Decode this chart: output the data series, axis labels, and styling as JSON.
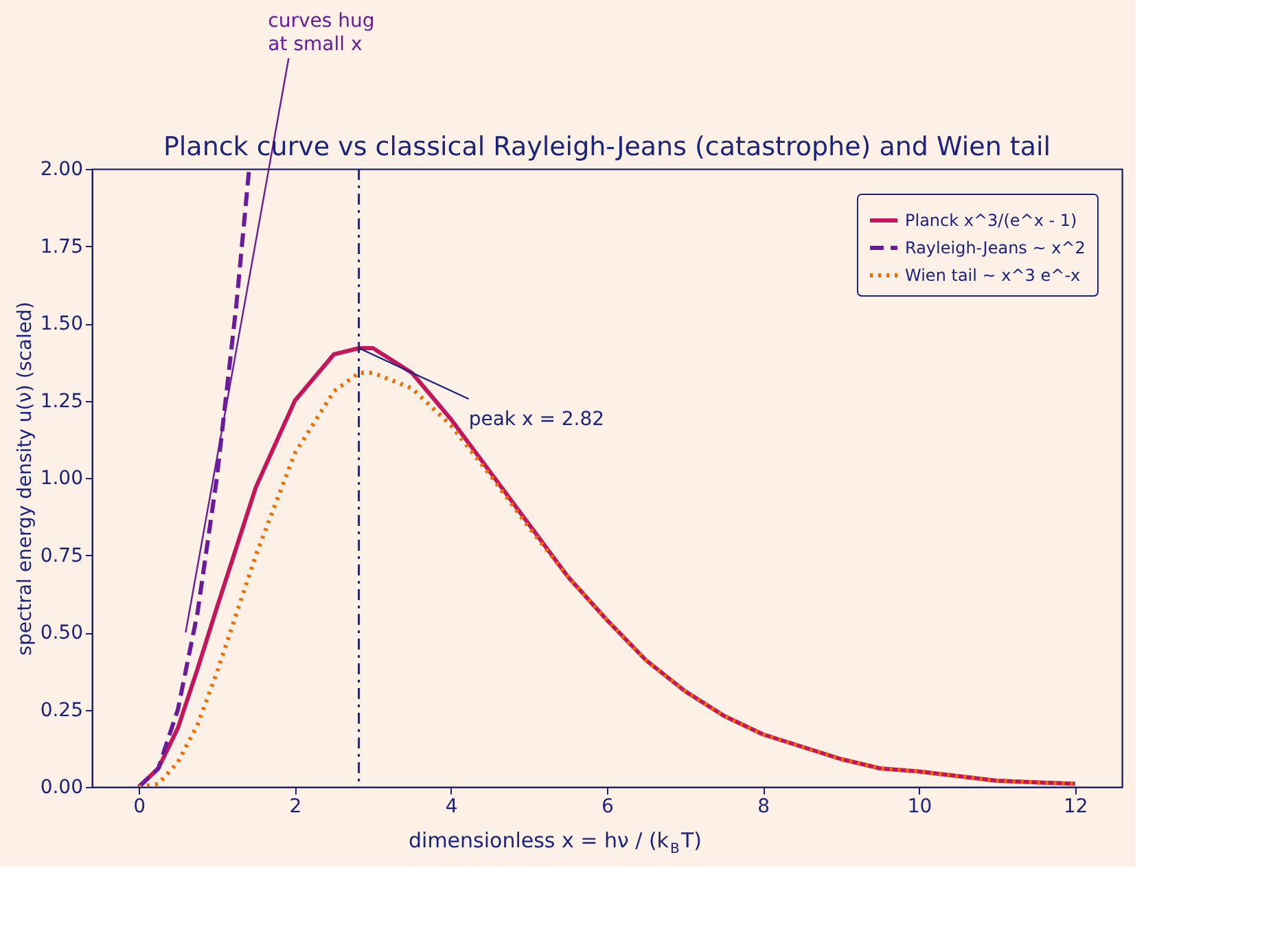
{
  "chart_data": {
    "type": "line",
    "title": "Planck curve vs classical Rayleigh-Jeans (catastrophe) and Wien tail",
    "xlabel": "dimensionless  x = hν / (k$_{B}$T)",
    "ylabel": "spectral energy density  u(ν)  (scaled)",
    "xlim": [
      -0.6,
      12.6
    ],
    "xticks": [
      {
        "value": 0,
        "label": "0"
      },
      {
        "value": 2,
        "label": "2"
      },
      {
        "value": 4,
        "label": "4"
      },
      {
        "value": 6,
        "label": "6"
      },
      {
        "value": 8,
        "label": "8"
      },
      {
        "value": 10,
        "label": "10"
      },
      {
        "value": 12,
        "label": "12"
      }
    ],
    "ylim": [
      0,
      2
    ],
    "yticks": [
      {
        "value": 0,
        "label": "0.00"
      },
      {
        "value": 0.25,
        "label": "0.25"
      },
      {
        "value": 0.5,
        "label": "0.50"
      },
      {
        "value": 0.75,
        "label": "0.75"
      },
      {
        "value": 1,
        "label": "1.00"
      },
      {
        "value": 1.25,
        "label": "1.25"
      },
      {
        "value": 1.5,
        "label": "1.50"
      },
      {
        "value": 1.75,
        "label": "1.75"
      },
      {
        "value": 2,
        "label": "2.00"
      }
    ],
    "grid": false,
    "legend": "top right",
    "series": [
      {
        "name": "Planck  x^3/(e^x - 1)",
        "color": "#c2185b",
        "line_style": "solid",
        "x": [
          0,
          0.25,
          0.5,
          0.75,
          1,
          1.5,
          2,
          2.5,
          2.82,
          3,
          3.5,
          4,
          4.5,
          5,
          5.5,
          6,
          6.5,
          7,
          7.5,
          8,
          8.5,
          9,
          9.5,
          10,
          11,
          12
        ],
        "values": [
          0,
          0.06,
          0.19,
          0.38,
          0.58,
          0.97,
          1.25,
          1.4,
          1.42,
          1.42,
          1.34,
          1.19,
          1.02,
          0.85,
          0.68,
          0.54,
          0.41,
          0.31,
          0.23,
          0.17,
          0.13,
          0.09,
          0.06,
          0.05,
          0.02,
          0.01
        ]
      },
      {
        "name": "Rayleigh-Jeans ~ x^2",
        "color": "#6a1b9a",
        "line_style": "dashed",
        "x": [
          0,
          0.25,
          0.5,
          0.75,
          1,
          1.25,
          1.41
        ],
        "values": [
          0,
          0.06,
          0.25,
          0.56,
          1.0,
          1.56,
          1.99
        ]
      },
      {
        "name": "Wien tail ~ x^3 e^-x",
        "color": "#ef6c00",
        "line_style": "dotted",
        "x": [
          0,
          0.25,
          0.5,
          0.75,
          1,
          1.5,
          2,
          2.5,
          2.82,
          3,
          3.5,
          4,
          4.5,
          5,
          5.5,
          6,
          6.5,
          7,
          7.5,
          8,
          8.5,
          9,
          9.5,
          10,
          11,
          12
        ],
        "values": [
          0,
          0.01,
          0.08,
          0.2,
          0.37,
          0.75,
          1.08,
          1.28,
          1.34,
          1.34,
          1.29,
          1.17,
          1.01,
          0.84,
          0.68,
          0.54,
          0.41,
          0.31,
          0.23,
          0.17,
          0.13,
          0.09,
          0.06,
          0.05,
          0.02,
          0.01
        ]
      }
    ],
    "ref_lines": [
      {
        "axis": "x",
        "value": 2.82,
        "label": null,
        "color": "#1a237e",
        "line_style": "dashdot"
      }
    ],
    "annotations": [
      {
        "text": "curves hug\nat small x",
        "x": 0.6,
        "y": 0.5
      },
      {
        "text": "peak x = 2.82",
        "x": 2.82,
        "y": 1.42
      }
    ]
  }
}
